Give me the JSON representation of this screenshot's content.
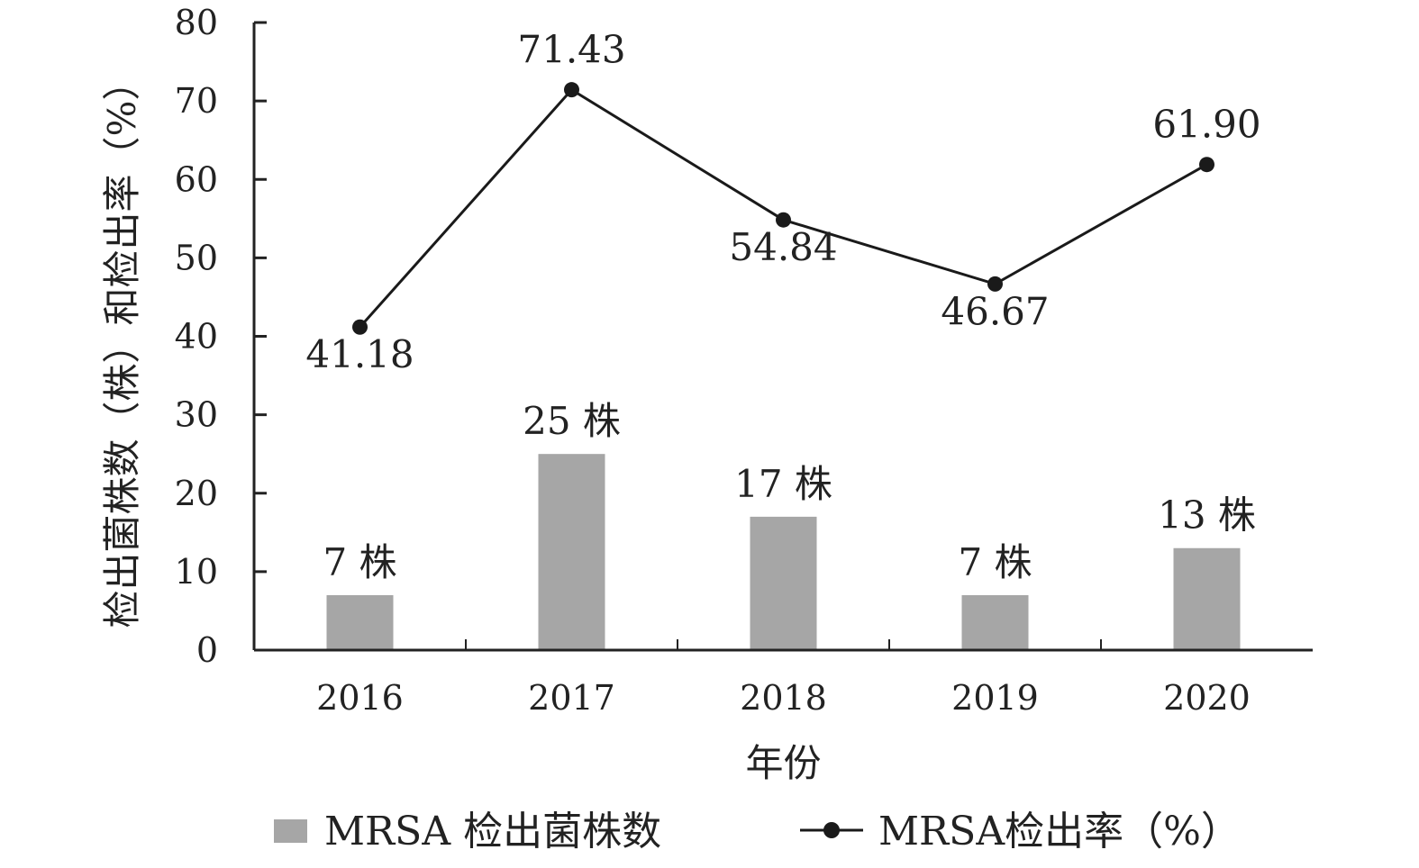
{
  "chart_data": {
    "type": "bar",
    "categories": [
      "2016",
      "2017",
      "2018",
      "2019",
      "2020"
    ],
    "xlabel": "年份",
    "ylabel": "检出菌株数（株）和检出率（%）",
    "ylim": [
      0,
      80
    ],
    "yticks": [
      0,
      10,
      20,
      30,
      40,
      50,
      60,
      70,
      80
    ],
    "grid": false,
    "legend_position": "bottom",
    "series": [
      {
        "name": "MRSA 检出菌株数",
        "type": "bar",
        "color": "#a6a6a6",
        "values": [
          7,
          25,
          17,
          7,
          13
        ],
        "labels": [
          "7 株",
          "25 株",
          "17 株",
          "7 株",
          "13 株"
        ]
      },
      {
        "name": "MRSA检出率（%）",
        "type": "line",
        "color": "#1a1a1a",
        "values": [
          41.18,
          71.43,
          54.84,
          46.67,
          61.9
        ],
        "labels": [
          "41.18",
          "71.43",
          "54.84",
          "46.67",
          "61.90"
        ]
      }
    ]
  }
}
